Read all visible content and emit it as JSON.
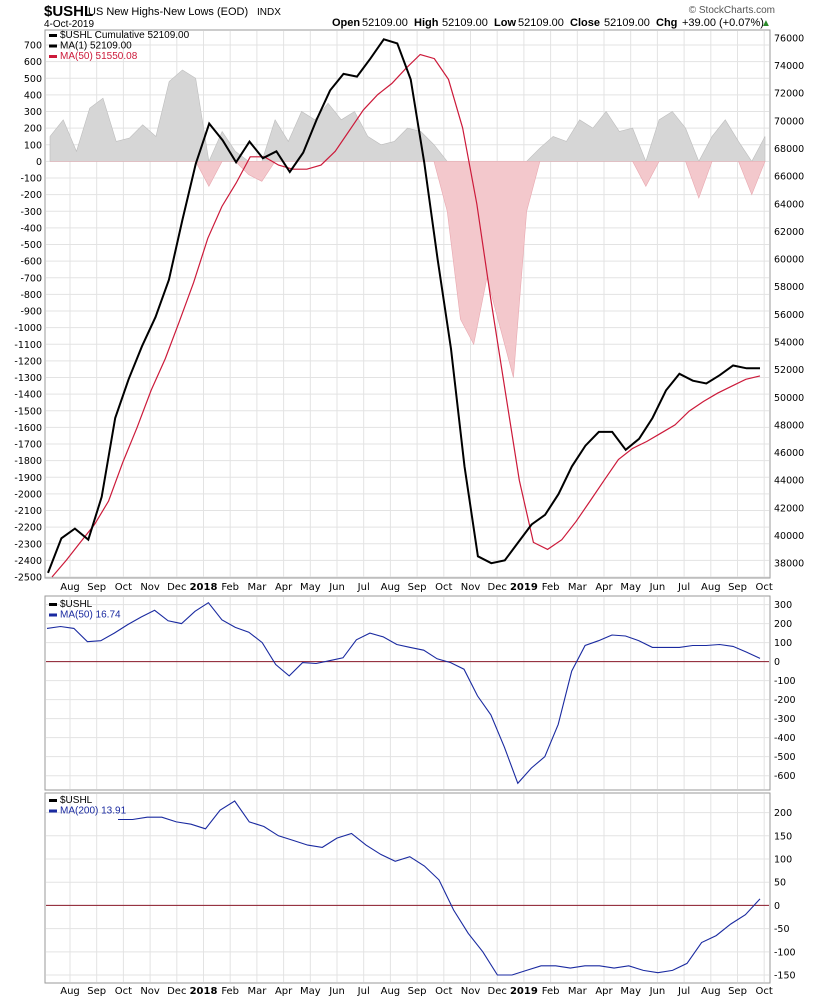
{
  "header": {
    "symbol": "$USHL",
    "description": "US New Highs-New Lows (EOD)",
    "exchange": "INDX",
    "date": "4-Oct-2019",
    "open_label": "Open",
    "open": "52109.00",
    "high_label": "High",
    "high": "52109.00",
    "low_label": "Low",
    "low": "52109.00",
    "close_label": "Close",
    "close": "52109.00",
    "chg_label": "Chg",
    "chg": "+39.00 (+0.07%)",
    "chg_arrow": "▲",
    "brand": "© StockCharts.com"
  },
  "colors": {
    "black": "#000000",
    "crimson": "#cc1a3a",
    "navy": "#1a2aa0",
    "zero_line": "#8b1a2a",
    "hist_pos": "#d6d6d6",
    "hist_neg": "#f3c8cc"
  },
  "x_axis": {
    "months": [
      "Aug",
      "Sep",
      "Oct",
      "Nov",
      "Dec",
      "2018",
      "Feb",
      "Mar",
      "Apr",
      "May",
      "Jun",
      "Jul",
      "Aug",
      "Sep",
      "Oct",
      "Nov",
      "Dec",
      "2019",
      "Feb",
      "Mar",
      "Apr",
      "May",
      "Jun",
      "Jul",
      "Aug",
      "Sep",
      "Oct"
    ]
  },
  "chart_data": [
    {
      "type": "line",
      "panel": "price",
      "legend": [
        {
          "label": "$USHL Cumulative 52109.00",
          "color": "#000000"
        },
        {
          "label": "MA(1) 52109.00",
          "color": "#000000"
        },
        {
          "label": "MA(50) 51550.08",
          "color": "#cc1a3a"
        }
      ],
      "left_axis": {
        "ticks": [
          "700",
          "600",
          "500",
          "400",
          "300",
          "200",
          "100",
          "0",
          "-100",
          "-200",
          "-300",
          "-400",
          "-500",
          "-600",
          "-700",
          "-800",
          "-900",
          "-1000",
          "-1100",
          "-1200",
          "-1300",
          "-1400",
          "-1500",
          "-1600",
          "-1700",
          "-1800",
          "-1900",
          "-2000",
          "-2100",
          "-2200",
          "-2300",
          "-2400",
          "-2500"
        ],
        "ylim": [
          -2500,
          700
        ]
      },
      "right_axis": {
        "ticks": [
          "76000",
          "74000",
          "72000",
          "70000",
          "68000",
          "66000",
          "64000",
          "62000",
          "60000",
          "58000",
          "56000",
          "54000",
          "52000",
          "50000",
          "48000",
          "46000",
          "44000",
          "42000",
          "40000",
          "38000"
        ],
        "ylim": [
          37000,
          76500
        ]
      },
      "x_month_index": [
        0,
        0.5,
        1,
        1.5,
        2,
        2.5,
        3,
        3.5,
        4,
        4.5,
        5,
        5.3,
        5.6,
        5.9,
        6.2,
        6.5,
        7,
        7.5,
        8,
        8.5,
        9,
        9.5,
        10,
        10.5,
        11,
        11.5,
        12,
        12.5,
        13,
        13.5,
        14,
        14.3,
        14.6,
        15,
        15.5,
        16,
        16.3,
        16.6,
        17,
        17.5,
        18,
        18.5,
        19,
        19.5,
        20,
        20.5,
        21,
        21.5,
        22,
        22.5,
        23,
        23.5,
        24,
        24.5,
        25,
        25.5,
        25.9
      ],
      "series": [
        {
          "name": "$USHL Cumulative",
          "axis": "right",
          "values": [
            37300,
            39800,
            40500,
            39700,
            42800,
            48500,
            51300,
            53700,
            55800,
            58500,
            62800,
            66900,
            69800,
            68600,
            67000,
            68500,
            67300,
            67800,
            66300,
            67700,
            70100,
            72200,
            73400,
            73200,
            74500,
            75900,
            75600,
            73000,
            67000,
            60000,
            53500,
            45000,
            38500,
            38000,
            38200,
            39500,
            40800,
            41500,
            43000,
            45000,
            46500,
            47500,
            47500,
            46200,
            47000,
            48500,
            50500,
            51700,
            51200,
            51000,
            51600,
            52300,
            52100,
            52109
          ]
        },
        {
          "name": "MA(50)",
          "axis": "right",
          "values": [
            37000,
            38200,
            39500,
            40800,
            42500,
            45300,
            47800,
            50500,
            52800,
            55500,
            58300,
            61500,
            63800,
            65500,
            67400,
            67400,
            66800,
            66500,
            66500,
            66800,
            67800,
            69300,
            70800,
            71900,
            72700,
            73800,
            74800,
            74500,
            73000,
            69500,
            64000,
            57000,
            50500,
            44000,
            39500,
            39000,
            39700,
            41000,
            42500,
            44000,
            45500,
            46300,
            46800,
            47400,
            48000,
            49000,
            49700,
            50300,
            50800,
            51300,
            51550
          ]
        }
      ],
      "histogram": {
        "name": "$USHL",
        "axis": "left",
        "values": [
          150,
          250,
          60,
          320,
          380,
          120,
          140,
          220,
          150,
          480,
          550,
          500,
          -150,
          180,
          60,
          -80,
          -120,
          250,
          120,
          300,
          250,
          350,
          250,
          300,
          150,
          100,
          120,
          200,
          180,
          100,
          -300,
          -950,
          -1100,
          -700,
          -1000,
          -1300,
          -300,
          80,
          150,
          120,
          250,
          200,
          300,
          180,
          200,
          -150,
          250,
          300,
          200,
          -220,
          150,
          250,
          120,
          -200,
          150
        ]
      }
    },
    {
      "type": "line",
      "panel": "ma50",
      "legend": [
        {
          "label": "$USHL",
          "color": "#000000"
        },
        {
          "label": "MA(50) 16.74",
          "color": "#1a2aa0"
        }
      ],
      "right_axis": {
        "ticks": [
          "300",
          "200",
          "100",
          "0",
          "-100",
          "-200",
          "-300",
          "-400",
          "-500",
          "-600"
        ],
        "ylim": [
          -670,
          340
        ]
      },
      "series": [
        {
          "name": "MA(50)",
          "values": [
            175,
            185,
            175,
            105,
            110,
            150,
            195,
            235,
            270,
            215,
            200,
            265,
            310,
            220,
            180,
            155,
            100,
            -15,
            -75,
            -5,
            -10,
            5,
            20,
            115,
            150,
            130,
            90,
            75,
            60,
            15,
            -5,
            -40,
            -180,
            -280,
            -450,
            -640,
            -560,
            -500,
            -330,
            -50,
            85,
            110,
            140,
            135,
            110,
            75,
            75,
            75,
            85,
            85,
            90,
            80,
            50,
            17
          ]
        }
      ]
    },
    {
      "type": "line",
      "panel": "ma200",
      "legend": [
        {
          "label": "$USHL",
          "color": "#000000"
        },
        {
          "label": "MA(200) 13.91",
          "color": "#1a2aa0"
        }
      ],
      "right_axis": {
        "ticks": [
          "200",
          "150",
          "100",
          "50",
          "0",
          "-50",
          "-100",
          "-150"
        ],
        "ylim": [
          -165,
          240
        ]
      },
      "series": [
        {
          "name": "MA(200)",
          "values": [
            185,
            185,
            190,
            190,
            180,
            175,
            165,
            205,
            225,
            180,
            170,
            150,
            140,
            130,
            125,
            145,
            155,
            130,
            110,
            95,
            105,
            85,
            55,
            -10,
            -60,
            -100,
            -150,
            -150,
            -140,
            -130,
            -130,
            -135,
            -130,
            -130,
            -135,
            -130,
            -140,
            -145,
            -140,
            -125,
            -80,
            -65,
            -40,
            -20,
            14
          ]
        }
      ]
    }
  ]
}
